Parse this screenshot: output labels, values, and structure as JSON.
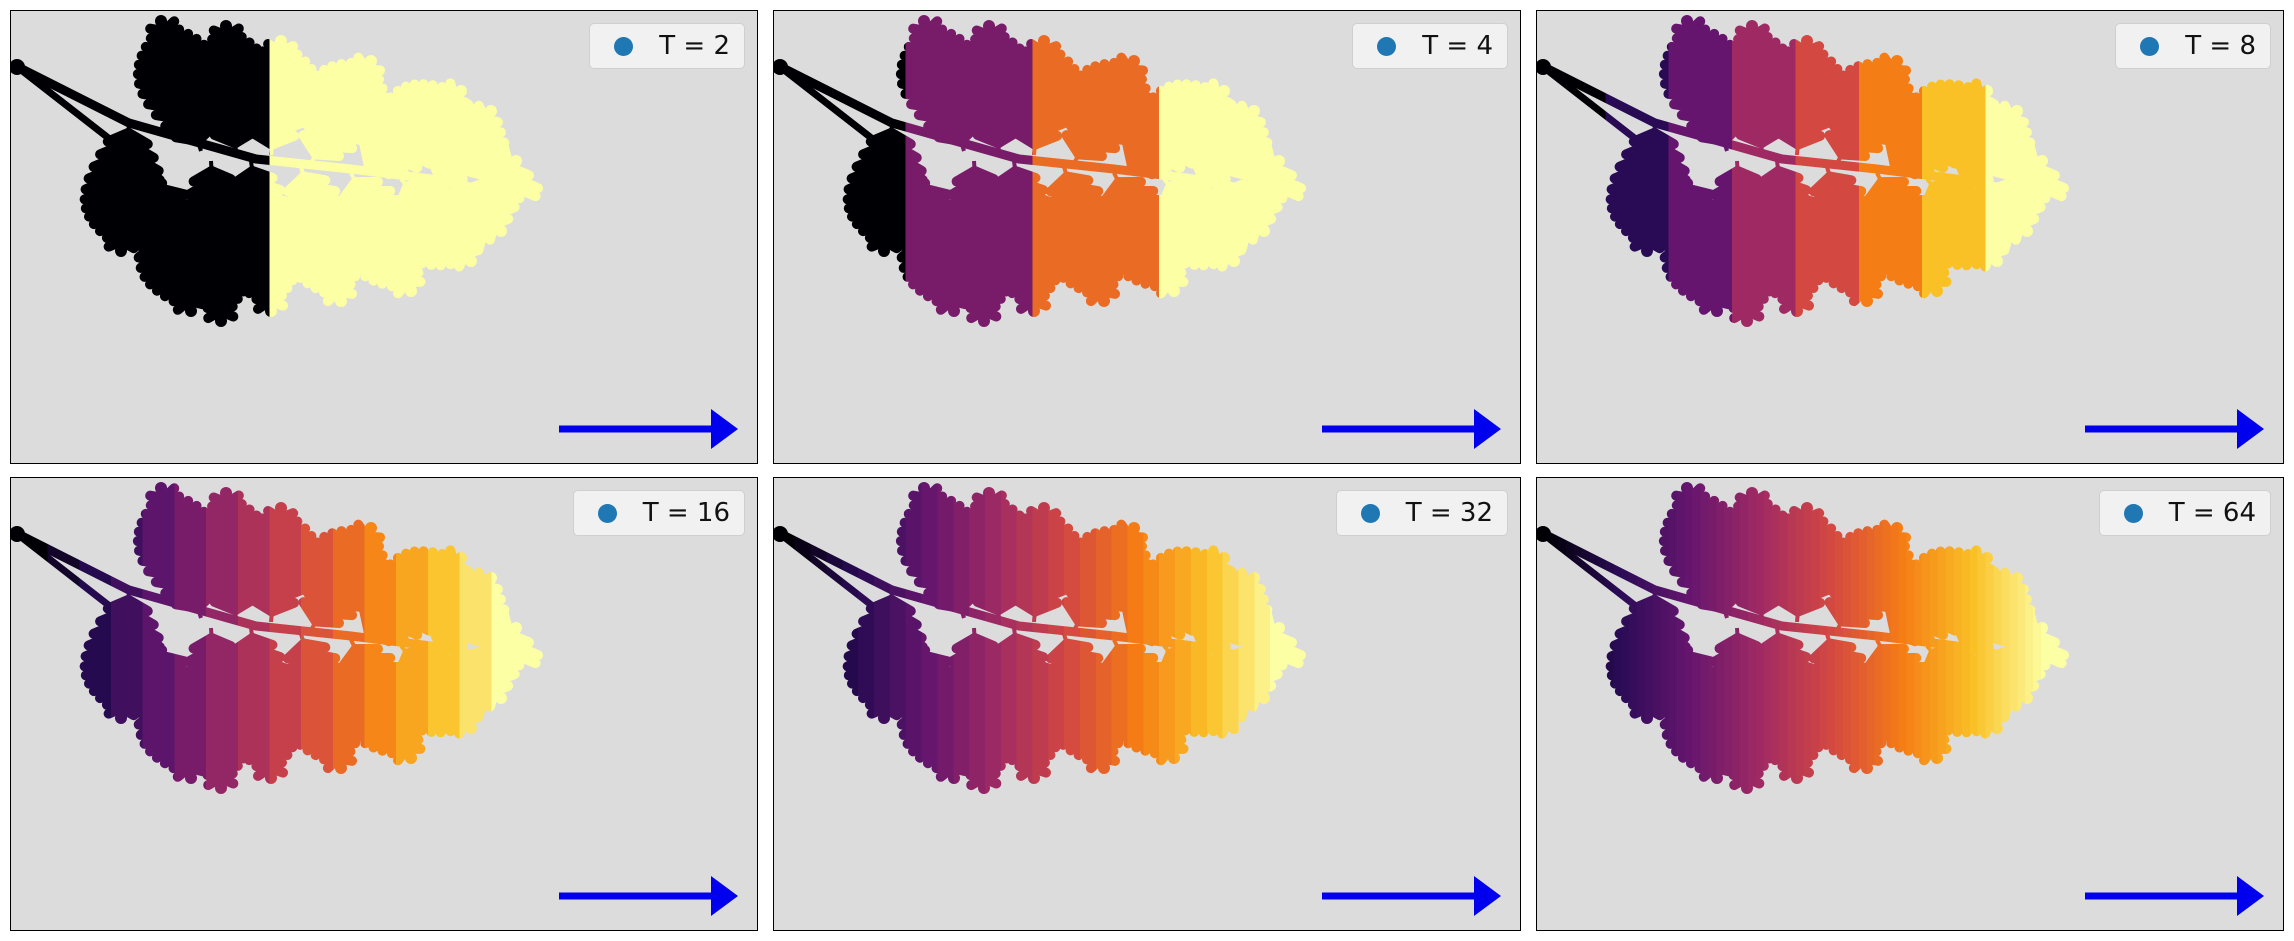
{
  "figure": {
    "colors": {
      "background": "#dcdcdc",
      "arrow": "#0000ee",
      "legend_marker": "#1f77b4",
      "colormap": "inferno"
    }
  },
  "chart_data": [
    {
      "type": "scatter",
      "legend": "T = 2",
      "segments": 2,
      "direction": "left-to-right"
    },
    {
      "type": "scatter",
      "legend": "T = 4",
      "segments": 4,
      "direction": "left-to-right"
    },
    {
      "type": "scatter",
      "legend": "T = 8",
      "segments": 8,
      "direction": "left-to-right"
    },
    {
      "type": "scatter",
      "legend": "T = 16",
      "segments": 16,
      "direction": "left-to-right"
    },
    {
      "type": "scatter",
      "legend": "T = 32",
      "segments": 32,
      "direction": "left-to-right"
    },
    {
      "type": "scatter",
      "legend": "T = 64",
      "segments": 64,
      "direction": "left-to-right"
    }
  ]
}
